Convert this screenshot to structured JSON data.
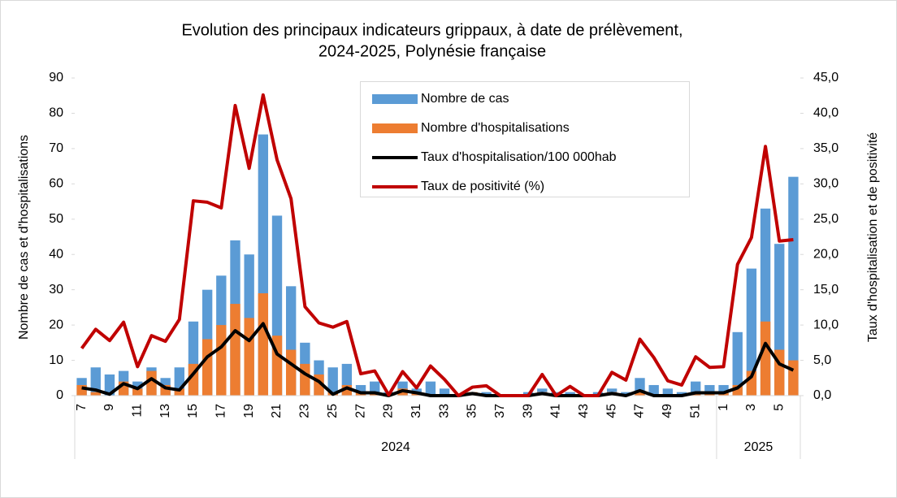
{
  "chart_data": {
    "type": "combo",
    "title": [
      "Evolution des principaux indicateurs grippaux, à date de prélèvement,",
      "2024-2025, Polynésie française"
    ],
    "y_label": "Nombre de cas et d'hospitalisations",
    "y2_label": "Taux d'hospitalisation et de positivité",
    "categories": [
      "7",
      null,
      "9",
      null,
      "11",
      null,
      "13",
      null,
      "15",
      null,
      "17",
      null,
      "19",
      null,
      "21",
      null,
      "23",
      null,
      "25",
      null,
      "27",
      null,
      "29",
      null,
      "31",
      null,
      "33",
      null,
      "35",
      null,
      "37",
      null,
      "39",
      null,
      "41",
      null,
      "43",
      null,
      "45",
      null,
      "47",
      null,
      "49",
      null,
      "51",
      null,
      "1",
      null,
      "3",
      null,
      "5",
      null
    ],
    "x_groups": [
      {
        "label": "2024",
        "span": 46
      },
      {
        "label": "2025",
        "span": 6
      }
    ],
    "series": [
      {
        "name": "Nombre de cas",
        "type": "bar",
        "color": "#5b9bd5",
        "values": [
          5,
          8,
          6,
          7,
          4,
          8,
          5,
          8,
          21,
          30,
          34,
          44,
          40,
          74,
          51,
          31,
          15,
          10,
          8,
          9,
          3,
          4,
          1,
          4,
          2,
          4,
          2,
          0,
          1,
          1,
          0,
          0,
          1,
          2,
          1,
          1,
          0,
          1,
          2,
          1,
          5,
          3,
          2,
          1,
          4,
          3,
          3,
          18,
          36,
          53,
          43,
          62
        ]
      },
      {
        "name": "Nombre d'hospitalisations",
        "type": "bar",
        "color": "#ed7d31",
        "values": [
          3,
          1,
          0,
          4,
          2,
          7,
          3,
          2,
          9,
          16,
          20,
          26,
          22,
          29,
          17,
          13,
          9,
          6,
          1,
          3,
          1,
          1,
          0,
          2,
          1,
          0,
          0,
          0,
          1,
          0,
          0,
          0,
          0,
          1,
          0,
          0,
          0,
          0,
          1,
          0,
          1,
          0,
          0,
          0,
          1,
          1,
          1,
          3,
          7,
          21,
          13,
          10
        ]
      },
      {
        "name": "Taux d'hospitalisation/100 000hab",
        "type": "line",
        "axis": "y2",
        "color": "#000000",
        "values": [
          1.1,
          0.8,
          0.2,
          1.7,
          1.0,
          2.4,
          1.1,
          0.8,
          3.1,
          5.5,
          6.9,
          9.2,
          7.8,
          10.2,
          5.9,
          4.5,
          3.1,
          2.0,
          0.2,
          1.1,
          0.4,
          0.4,
          0,
          0.7,
          0.4,
          0,
          0,
          0,
          0.3,
          0,
          0,
          0,
          0,
          0.3,
          0,
          0,
          0,
          0,
          0.3,
          0,
          0.7,
          0,
          0,
          0,
          0.4,
          0.4,
          0.4,
          1.1,
          2.7,
          7.4,
          4.5,
          3.6
        ]
      },
      {
        "name": "Taux de positivité (%)",
        "type": "line",
        "axis": "y2",
        "color": "#c00000",
        "values": [
          6.7,
          9.4,
          7.8,
          10.4,
          4.1,
          8.5,
          7.7,
          10.8,
          27.6,
          27.4,
          26.6,
          41.1,
          32.2,
          42.6,
          33.4,
          27.9,
          12.6,
          10.3,
          9.7,
          10.5,
          3.1,
          3.5,
          0.1,
          3.4,
          1.1,
          4.2,
          2.3,
          0,
          1.2,
          1.4,
          0,
          0,
          0,
          3.0,
          0,
          1.3,
          0,
          0,
          3.3,
          2.2,
          8.0,
          5.4,
          2.1,
          1.5,
          5.5,
          4.0,
          4.1,
          18.6,
          22.4,
          35.3,
          21.9,
          22.1
        ]
      }
    ],
    "ylim": [
      0,
      90
    ],
    "yticks": [
      0,
      10,
      20,
      30,
      40,
      50,
      60,
      70,
      80,
      90
    ],
    "y2lim": [
      0,
      45
    ],
    "y2ticks": [
      {
        "value": 0,
        "label": "0,0"
      },
      {
        "value": 5,
        "label": "5,0"
      },
      {
        "value": 10,
        "label": "10,0"
      },
      {
        "value": 15,
        "label": "15,0"
      },
      {
        "value": 20,
        "label": "20,0"
      },
      {
        "value": 25,
        "label": "25,0"
      },
      {
        "value": 30,
        "label": "30,0"
      },
      {
        "value": 35,
        "label": "35,0"
      },
      {
        "value": 40,
        "label": "40,0"
      },
      {
        "value": 45,
        "label": "45,0"
      }
    ],
    "grid": false,
    "legend": "top"
  }
}
